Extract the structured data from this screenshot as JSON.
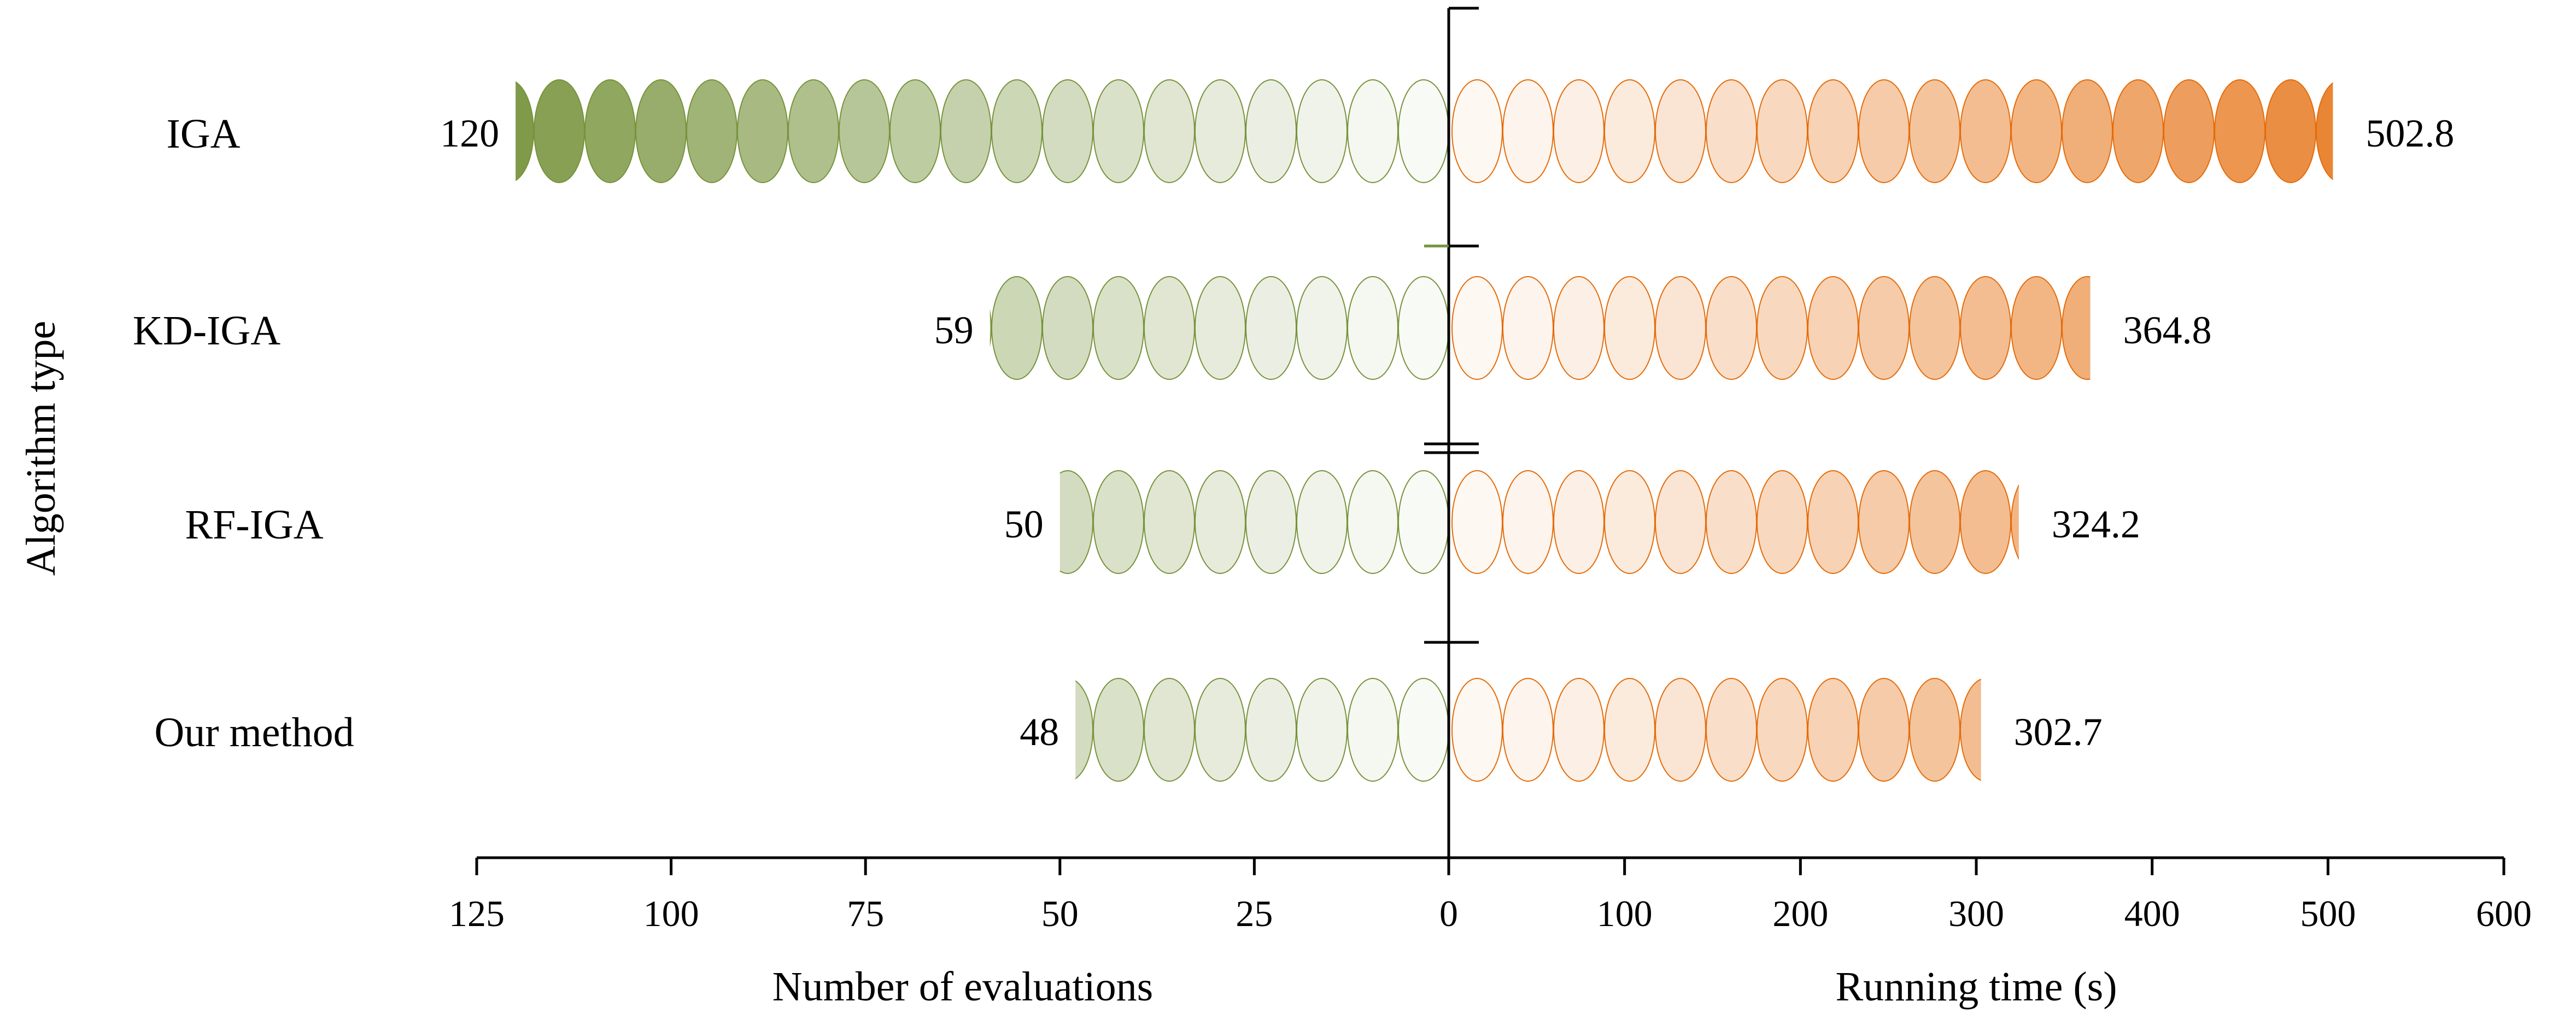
{
  "chart_data": {
    "type": "bar",
    "style": "mirrored pictorial bars of ellipse tokens",
    "ylabel": "Algorithm type",
    "categories": [
      "IGA",
      "KD-IGA",
      "RF-IGA",
      "Our method"
    ],
    "left_axis": {
      "xlabel": "Number of evaluations",
      "xlim": [
        0,
        125
      ],
      "ticks": [
        125,
        100,
        75,
        50,
        25,
        0
      ],
      "color": "#77933c",
      "series": [
        {
          "category": "IGA",
          "value": 120,
          "label": "120"
        },
        {
          "category": "KD-IGA",
          "value": 59,
          "label": "59"
        },
        {
          "category": "RF-IGA",
          "value": 50,
          "label": "50"
        },
        {
          "category": "Our method",
          "value": 48,
          "label": "48"
        }
      ]
    },
    "right_axis": {
      "xlabel": "Running time (s)",
      "xlim": [
        0,
        600
      ],
      "ticks": [
        0,
        100,
        200,
        300,
        400,
        500,
        600
      ],
      "color": "#e46c0a",
      "series": [
        {
          "category": "IGA",
          "value": 502.8,
          "label": "502.8"
        },
        {
          "category": "KD-IGA",
          "value": 364.8,
          "label": "364.8"
        },
        {
          "category": "RF-IGA",
          "value": 324.2,
          "label": "324.2"
        },
        {
          "category": "Our method",
          "value": 302.7,
          "label": "302.7"
        }
      ]
    }
  }
}
